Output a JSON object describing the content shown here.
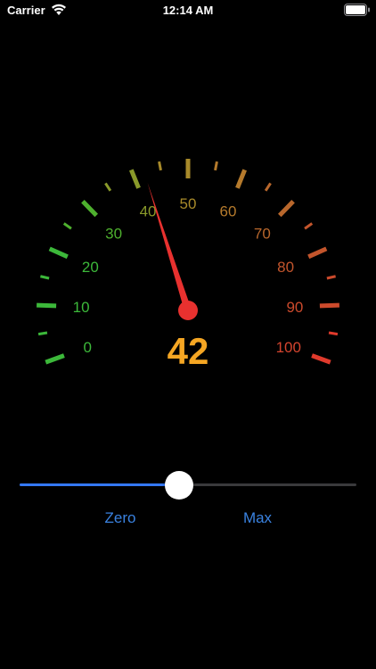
{
  "status_bar": {
    "carrier": "Carrier",
    "time": "12:14 AM",
    "wifi_icon": "wifi-icon",
    "battery_icon": "battery-icon"
  },
  "gauge": {
    "min": 0,
    "max": 100,
    "value": 42,
    "value_text": "42",
    "major_labels": [
      "0",
      "10",
      "20",
      "30",
      "40",
      "50",
      "60",
      "70",
      "80",
      "90",
      "100"
    ],
    "value_color": "#f5a623",
    "needle_color": "#e8312f",
    "label_colors": [
      "#3cb83a",
      "#3cb83a",
      "#3cb83a",
      "#4eb02e",
      "#8a9a2a",
      "#a88a2a",
      "#b57a2c",
      "#b8672c",
      "#c3552c",
      "#cc4a2c",
      "#d4442e"
    ],
    "tick_colors": [
      "#3cb83a",
      "#3cb83a",
      "#3cb83a",
      "#4eb02e",
      "#8a9a2a",
      "#a88a2a",
      "#b57a2c",
      "#b8672c",
      "#c3552c",
      "#cc4a2c",
      "#e03a2c"
    ]
  },
  "slider": {
    "value": 0.42,
    "track_color": "#3a3a3c",
    "fill_color": "#3478f6"
  },
  "buttons": {
    "zero_label": "Zero",
    "max_label": "Max"
  }
}
